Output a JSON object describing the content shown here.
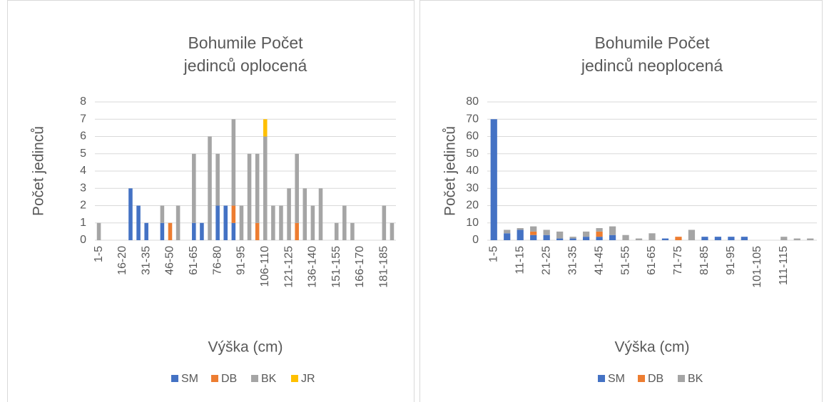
{
  "chart_data": [
    {
      "type": "bar",
      "stacked": true,
      "title": "Bohumile Počet jedinců oplocená",
      "xlabel": "Výška (cm)",
      "ylabel": "Počet jedinců",
      "categories": [
        "1-5",
        null,
        null,
        "16-20",
        null,
        null,
        "31-35",
        null,
        null,
        "46-50",
        null,
        null,
        "61-65",
        null,
        null,
        "76-80",
        null,
        null,
        "91-95",
        null,
        null,
        "106-110",
        null,
        null,
        "121-125",
        null,
        null,
        "136-140",
        null,
        null,
        "151-155",
        null,
        null,
        "166-170",
        null,
        null,
        "181-185",
        null
      ],
      "series": [
        {
          "name": "SM",
          "color": "#4472c4",
          "values": [
            0,
            0,
            0,
            0,
            3,
            2,
            1,
            0,
            1,
            0,
            0,
            0,
            1,
            1,
            0,
            2,
            2,
            1,
            0,
            0,
            0,
            0,
            0,
            0,
            0,
            0,
            0,
            0,
            0,
            0,
            0,
            0,
            0,
            0,
            0,
            0,
            0,
            0
          ]
        },
        {
          "name": "DB",
          "color": "#ed7d31",
          "values": [
            0,
            0,
            0,
            0,
            0,
            0,
            0,
            0,
            0,
            1,
            0,
            0,
            0,
            0,
            0,
            0,
            0,
            1,
            0,
            0,
            1,
            0,
            0,
            0,
            0,
            1,
            0,
            0,
            0,
            0,
            0,
            0,
            0,
            0,
            0,
            0,
            0,
            0
          ]
        },
        {
          "name": "BK",
          "color": "#a5a5a5",
          "values": [
            1,
            0,
            0,
            0,
            0,
            0,
            0,
            0,
            1,
            0,
            2,
            0,
            4,
            0,
            6,
            3,
            0,
            5,
            2,
            5,
            4,
            6,
            2,
            2,
            3,
            4,
            3,
            2,
            3,
            0,
            1,
            2,
            1,
            0,
            0,
            0,
            2,
            1
          ]
        },
        {
          "name": "JR",
          "color": "#ffc000",
          "values": [
            0,
            0,
            0,
            0,
            0,
            0,
            0,
            0,
            0,
            0,
            0,
            0,
            0,
            0,
            0,
            0,
            0,
            0,
            0,
            0,
            0,
            1,
            0,
            0,
            0,
            0,
            0,
            0,
            0,
            0,
            0,
            0,
            0,
            0,
            0,
            0,
            0,
            0
          ]
        }
      ],
      "ylim": [
        0,
        8
      ],
      "yticks": [
        0,
        1,
        2,
        3,
        4,
        5,
        6,
        7,
        8
      ],
      "grid": true,
      "legend": "bottom"
    },
    {
      "type": "bar",
      "stacked": true,
      "title": "Bohumile Počet jedinců neoplocená",
      "xlabel": "Výška (cm)",
      "ylabel": "Počet jedinců",
      "categories": [
        "1-5",
        null,
        "11-15",
        null,
        "21-25",
        null,
        "31-35",
        null,
        "41-45",
        null,
        "51-55",
        null,
        "61-65",
        null,
        "71-75",
        null,
        "81-85",
        null,
        "91-95",
        null,
        "101-105",
        null,
        "111-115",
        null,
        null
      ],
      "series": [
        {
          "name": "SM",
          "color": "#4472c4",
          "values": [
            70,
            4,
            6,
            3,
            3,
            1,
            1,
            2,
            2,
            3,
            0,
            0,
            0,
            1,
            0,
            0,
            2,
            2,
            2,
            2,
            0,
            0,
            0,
            0,
            0
          ]
        },
        {
          "name": "DB",
          "color": "#ed7d31",
          "values": [
            0,
            0,
            0,
            2,
            0,
            0,
            0,
            0,
            3,
            0,
            0,
            0,
            0,
            0,
            2,
            0,
            0,
            0,
            0,
            0,
            0,
            0,
            0,
            0,
            0
          ]
        },
        {
          "name": "BK",
          "color": "#a5a5a5",
          "values": [
            0,
            2,
            1,
            3,
            3,
            4,
            1,
            3,
            2,
            5,
            3,
            1,
            4,
            0,
            0,
            6,
            0,
            0,
            0,
            0,
            0,
            0,
            2,
            1,
            1
          ]
        }
      ],
      "ylim": [
        0,
        80
      ],
      "yticks": [
        0,
        10,
        20,
        30,
        40,
        50,
        60,
        70,
        80
      ],
      "grid": true,
      "legend": "bottom"
    }
  ]
}
